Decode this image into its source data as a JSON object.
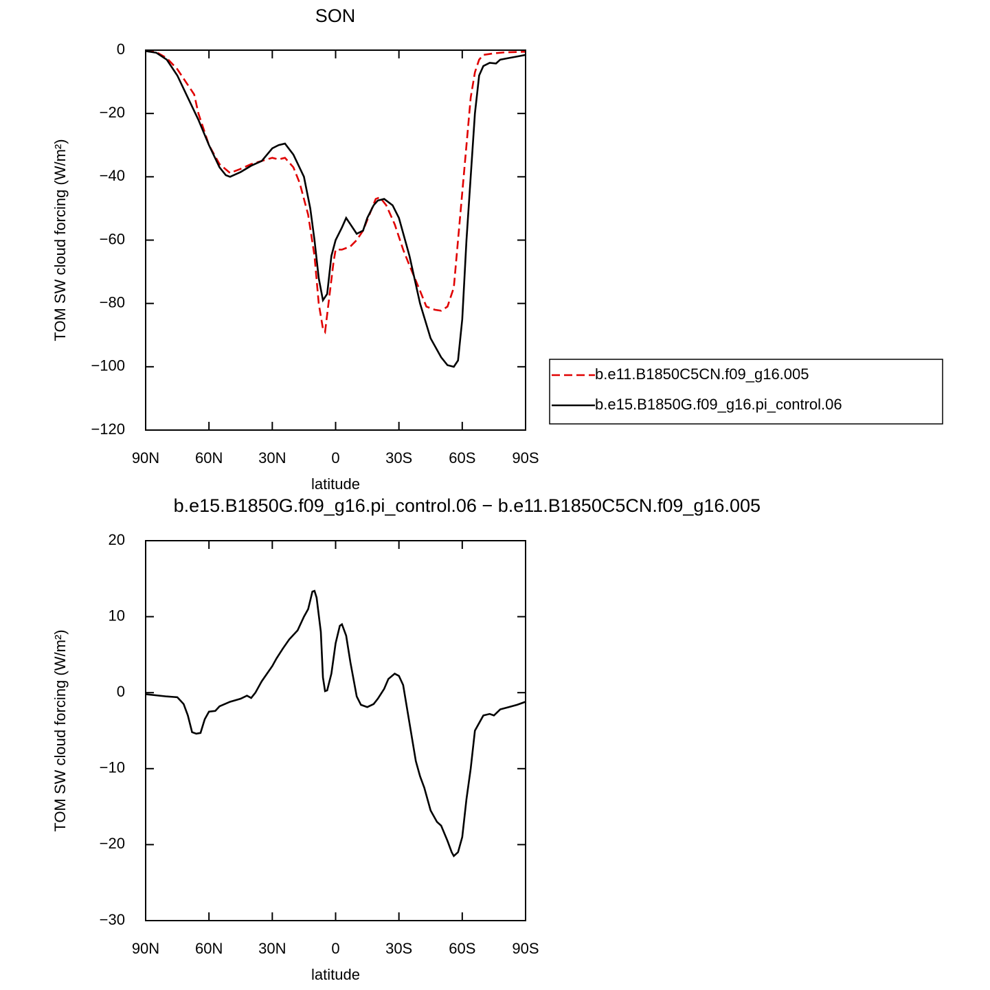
{
  "chart_data": [
    {
      "type": "line",
      "title": "SON",
      "xlabel": "latitude",
      "ylabel": "TOM SW cloud forcing (W/m²)",
      "xlim": [
        90,
        -90
      ],
      "xticks": [
        {
          "value": 90,
          "label": "90N"
        },
        {
          "value": 60,
          "label": "60N"
        },
        {
          "value": 30,
          "label": "30N"
        },
        0,
        {
          "value": -30,
          "label": "30S"
        },
        {
          "value": -60,
          "label": "60S"
        },
        {
          "value": -90,
          "label": "90S"
        }
      ],
      "ylim": [
        -120,
        0
      ],
      "yticks": [
        {
          "value": -120,
          "label": "−120"
        },
        {
          "value": -100,
          "label": "−100"
        },
        {
          "value": -80,
          "label": "−80"
        },
        {
          "value": -60,
          "label": "−60"
        },
        {
          "value": -40,
          "label": "−40"
        },
        {
          "value": -20,
          "label": "−20"
        },
        0
      ],
      "legend": "right",
      "series": [
        {
          "name": "b.e11.B1850C5CN.f09_g16.005",
          "color": "#e00000",
          "dash": true,
          "x": [
            90,
            85,
            80,
            75,
            70,
            67,
            65,
            60,
            55,
            50,
            45,
            40,
            35,
            30,
            27,
            24,
            20,
            17,
            13,
            10,
            8,
            6,
            5,
            3,
            1,
            0,
            -3,
            -7,
            -10,
            -13,
            -16,
            -19,
            -21,
            -24,
            -28,
            -32,
            -35,
            -40,
            -43,
            -47,
            -50,
            -53,
            -56,
            -58,
            -60,
            -62,
            -64,
            -66,
            -68,
            -70,
            -75,
            -80,
            -90
          ],
          "values": [
            -0.3,
            -0.6,
            -2.5,
            -6,
            -11,
            -14,
            -20,
            -30,
            -36,
            -38.8,
            -37.5,
            -36,
            -35,
            -34,
            -34.5,
            -34,
            -37,
            -42,
            -52,
            -65,
            -80,
            -88,
            -89,
            -78,
            -67,
            -63,
            -63,
            -62,
            -60,
            -57,
            -52,
            -47,
            -46.5,
            -49,
            -55,
            -63,
            -68,
            -76,
            -81,
            -82,
            -82.3,
            -81,
            -75,
            -60,
            -45,
            -30,
            -15,
            -7,
            -3,
            -1.5,
            -1,
            -0.7,
            -0.5
          ]
        },
        {
          "name": "b.e15.B1850G.f09_g16.pi_control.06",
          "color": "#000000",
          "dash": false,
          "x": [
            90,
            85,
            80,
            75,
            70,
            65,
            60,
            55,
            52,
            50,
            45,
            40,
            35,
            30,
            27,
            24,
            20,
            15,
            12,
            10,
            8,
            6,
            4,
            2,
            0,
            -3,
            -5,
            -7,
            -10,
            -13,
            -15,
            -18,
            -20,
            -23,
            -27,
            -30,
            -35,
            -40,
            -45,
            -50,
            -53,
            -56,
            -58,
            -60,
            -62,
            -64,
            -66,
            -68,
            -70,
            -73,
            -76,
            -78,
            -82,
            -86,
            -90
          ],
          "values": [
            -0.3,
            -0.8,
            -3,
            -8,
            -15,
            -22,
            -30,
            -37,
            -39.5,
            -40,
            -38.5,
            -36.5,
            -35,
            -31,
            -30,
            -29.5,
            -33,
            -40,
            -50,
            -60,
            -72,
            -79,
            -77,
            -65,
            -60,
            -56,
            -53,
            -55,
            -58,
            -57,
            -53,
            -49,
            -47.5,
            -47,
            -49,
            -53,
            -65,
            -80,
            -91,
            -97,
            -99.5,
            -100,
            -98,
            -85,
            -60,
            -40,
            -20,
            -8,
            -5,
            -4,
            -4.2,
            -3,
            -2.5,
            -2,
            -1.5
          ]
        }
      ]
    },
    {
      "type": "line",
      "title": "b.e15.B1850G.f09_g16.pi_control.06 − b.e11.B1850C5CN.f09_g16.005",
      "xlabel": "latitude",
      "ylabel": "TOM SW cloud forcing (W/m²)",
      "xlim": [
        90,
        -90
      ],
      "xticks": [
        {
          "value": 90,
          "label": "90N"
        },
        {
          "value": 60,
          "label": "60N"
        },
        {
          "value": 30,
          "label": "30N"
        },
        0,
        {
          "value": -30,
          "label": "30S"
        },
        {
          "value": -60,
          "label": "60S"
        },
        {
          "value": -90,
          "label": "90S"
        }
      ],
      "ylim": [
        -30,
        20
      ],
      "yticks": [
        {
          "value": -30,
          "label": "−30"
        },
        {
          "value": -20,
          "label": "−20"
        },
        {
          "value": -10,
          "label": "−10"
        },
        0,
        10,
        20
      ],
      "series": [
        {
          "color": "#000000",
          "dash": false,
          "x": [
            90,
            80,
            75,
            72,
            70,
            68,
            66,
            64,
            62,
            60,
            57,
            55,
            50,
            45,
            42,
            40,
            38,
            35,
            30,
            28,
            25,
            22,
            18,
            15,
            13,
            11,
            10,
            9,
            7,
            6,
            5,
            4,
            2,
            0,
            -2,
            -3,
            -5,
            -7,
            -10,
            -12,
            -15,
            -18,
            -20,
            -23,
            -25,
            -28,
            -30,
            -32,
            -35,
            -38,
            -40,
            -42,
            -45,
            -48,
            -50,
            -53,
            -55,
            -56,
            -58,
            -60,
            -62,
            -64,
            -66,
            -68,
            -70,
            -73,
            -75,
            -78,
            -82,
            -86,
            -90
          ],
          "values": [
            -0.2,
            -0.5,
            -0.6,
            -1.5,
            -3,
            -5.2,
            -5.4,
            -5.3,
            -3.5,
            -2.5,
            -2.4,
            -1.8,
            -1.2,
            -0.8,
            -0.4,
            -0.7,
            0,
            1.5,
            3.5,
            4.5,
            5.8,
            7,
            8.2,
            10,
            11,
            13.3,
            13.4,
            12.5,
            8,
            2,
            0.2,
            0.3,
            2.5,
            6.5,
            8.8,
            9,
            7.5,
            4,
            -0.5,
            -1.6,
            -1.9,
            -1.5,
            -0.8,
            0.5,
            1.8,
            2.5,
            2.2,
            1,
            -4,
            -9,
            -11,
            -12.5,
            -15.5,
            -17,
            -17.5,
            -19.5,
            -21,
            -21.5,
            -21,
            -19,
            -14,
            -10,
            -5,
            -4,
            -3,
            -2.8,
            -3,
            -2.2,
            -1.9,
            -1.6,
            -1.2
          ]
        }
      ]
    }
  ]
}
